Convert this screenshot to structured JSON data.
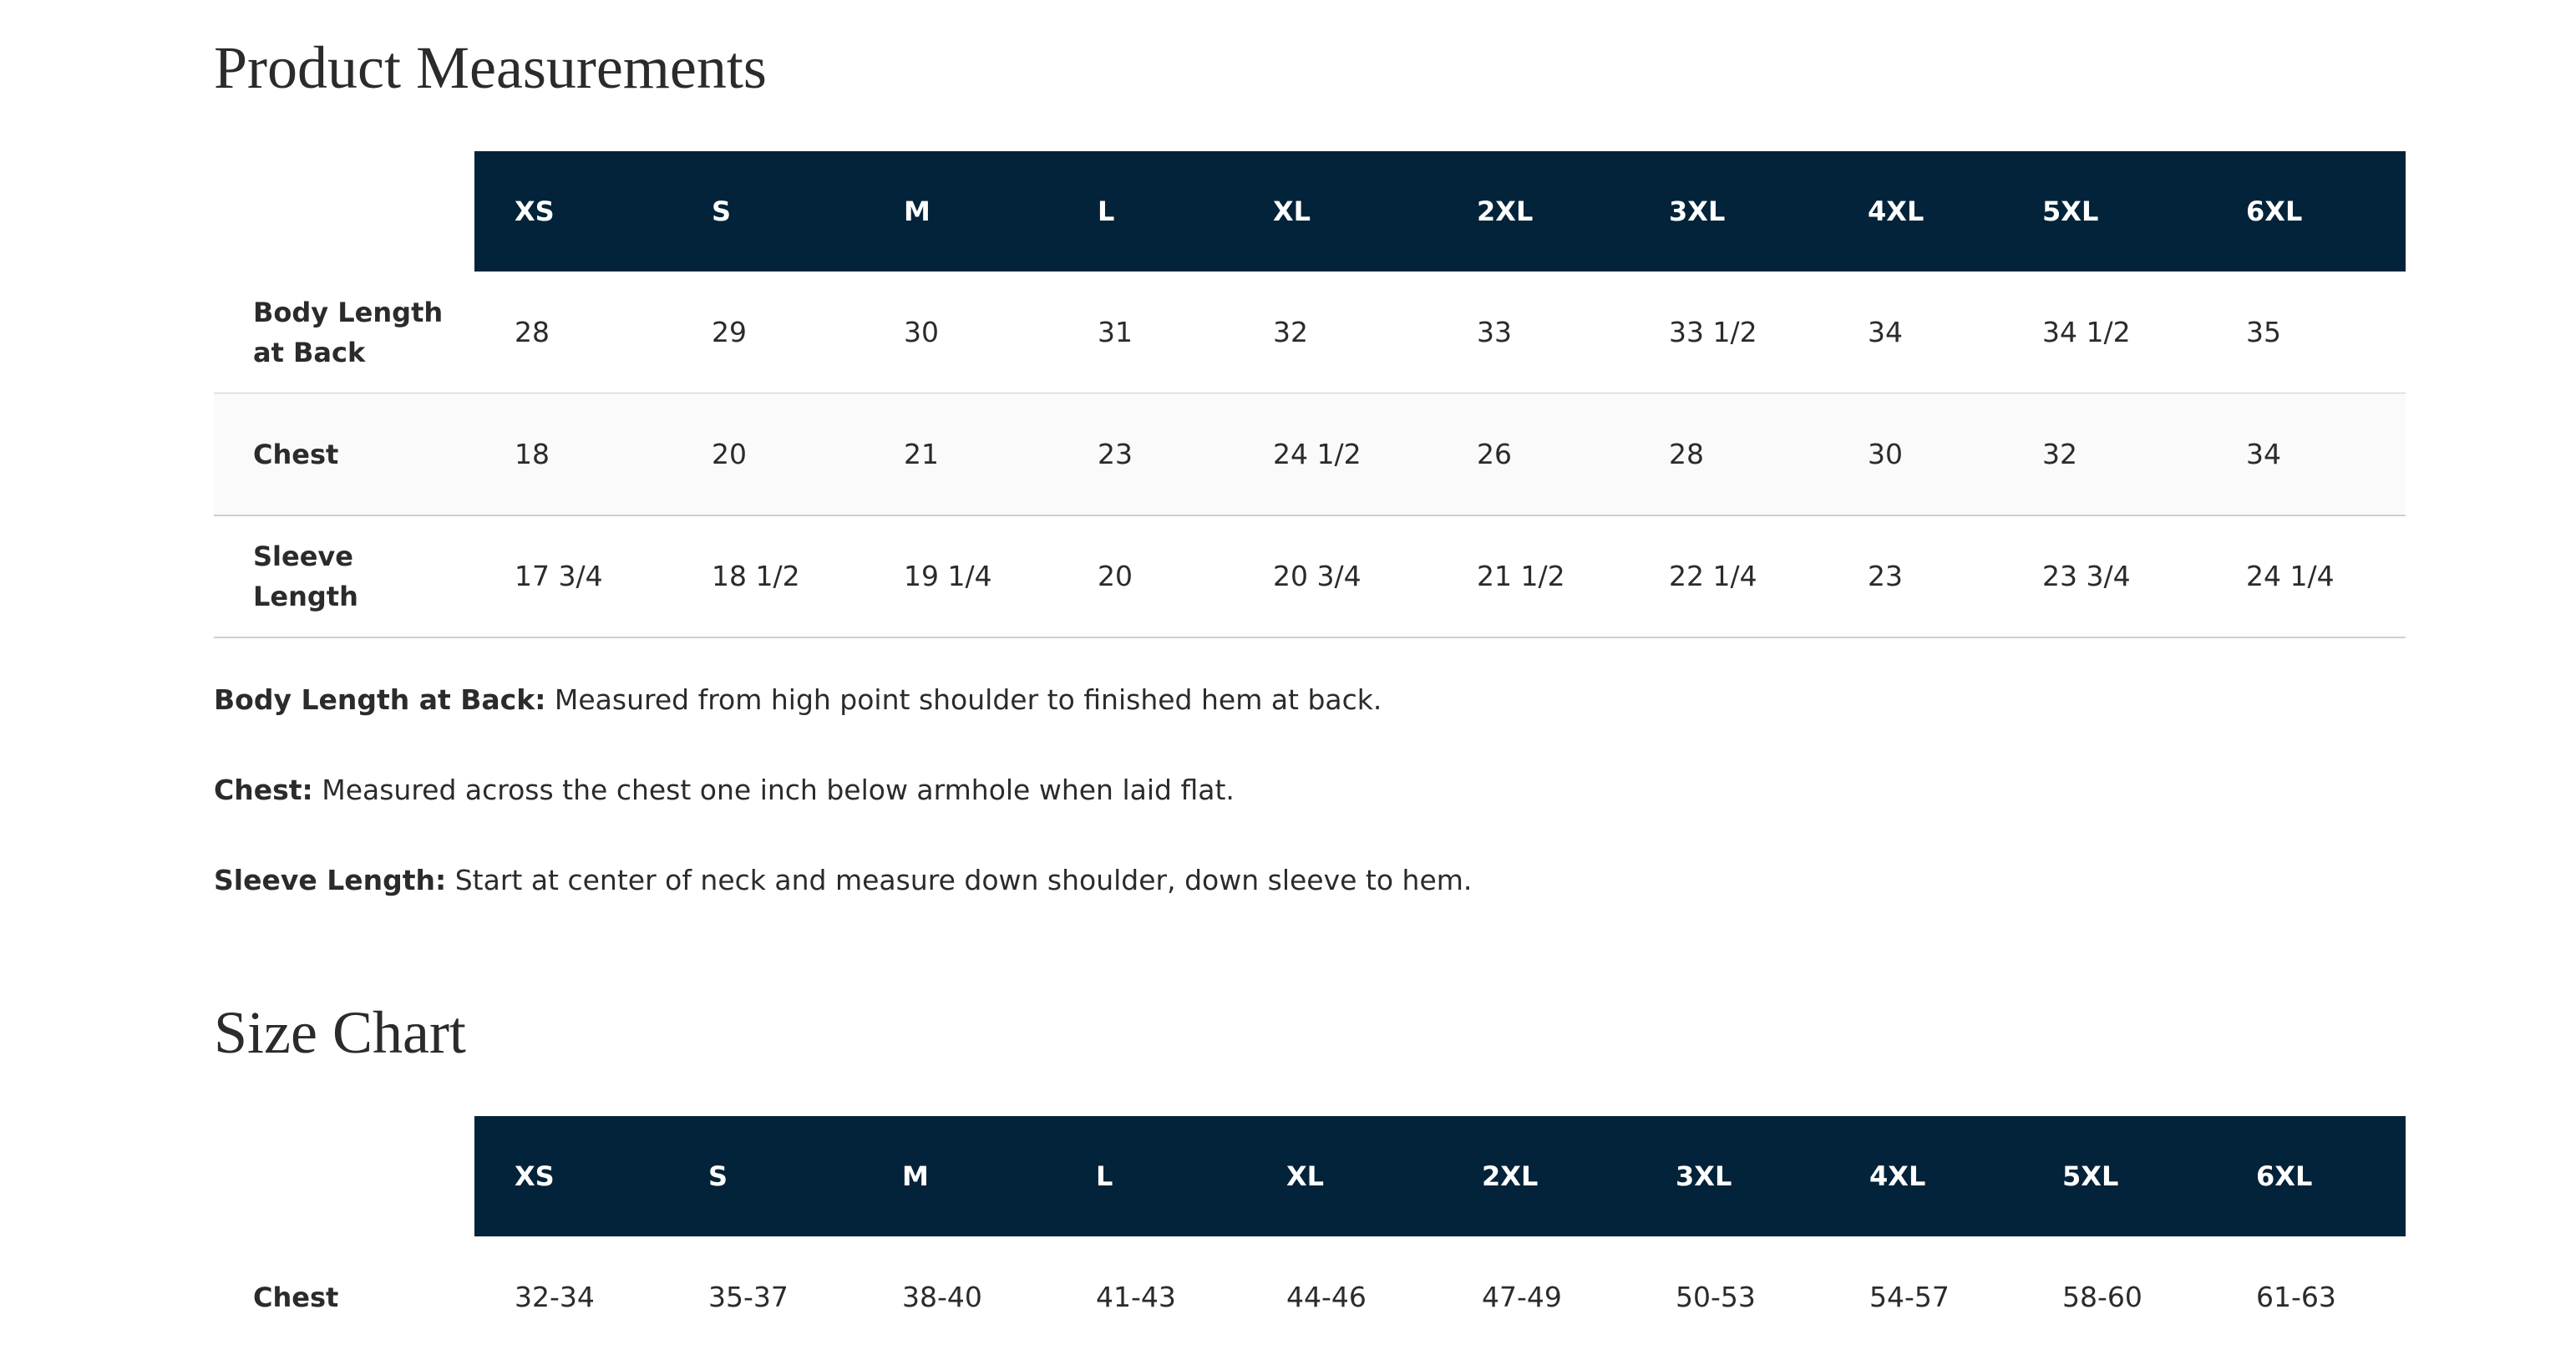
{
  "sections": [
    {
      "title": "Product Measurements",
      "table": {
        "headers": [
          "XS",
          "S",
          "M",
          "L",
          "XL",
          "2XL",
          "3XL",
          "4XL",
          "5XL",
          "6XL"
        ],
        "rows": [
          {
            "label": "Body Length at Back",
            "cells": [
              "28",
              "29",
              "30",
              "31",
              "32",
              "33",
              "33 1/2",
              "34",
              "34 1/2",
              "35"
            ]
          },
          {
            "label": "Chest",
            "cells": [
              "18",
              "20",
              "21",
              "23",
              "24 1/2",
              "26",
              "28",
              "30",
              "32",
              "34"
            ]
          },
          {
            "label": "Sleeve Length",
            "cells": [
              "17 3/4",
              "18 1/2",
              "19 1/4",
              "20",
              "20 3/4",
              "21 1/2",
              "22 1/4",
              "23",
              "23 3/4",
              "24 1/4"
            ]
          }
        ]
      },
      "notes": [
        {
          "term": "Body Length at Back:",
          "text": "Measured from high point shoulder to finished hem at back."
        },
        {
          "term": "Chest:",
          "text": "Measured across the chest one inch below armhole when laid flat."
        },
        {
          "term": "Sleeve Length:",
          "text": "Start at center of neck and measure down shoulder, down sleeve to hem."
        }
      ]
    },
    {
      "title": "Size Chart",
      "table": {
        "headers": [
          "XS",
          "S",
          "M",
          "L",
          "XL",
          "2XL",
          "3XL",
          "4XL",
          "5XL",
          "6XL"
        ],
        "rows": [
          {
            "label": "Chest",
            "cells": [
              "32-34",
              "35-37",
              "38-40",
              "41-43",
              "44-46",
              "47-49",
              "50-53",
              "54-57",
              "58-60",
              "61-63"
            ]
          }
        ]
      }
    }
  ]
}
